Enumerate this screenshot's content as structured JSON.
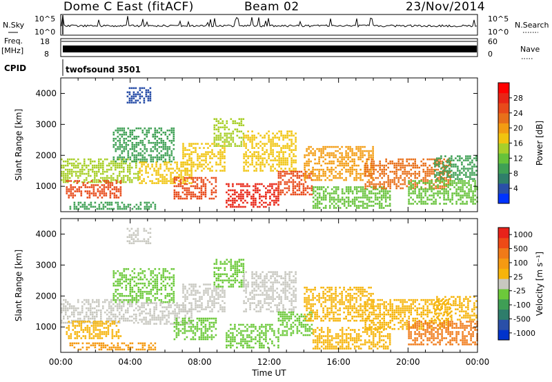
{
  "header": {
    "station": "Dome C East (fitACF)",
    "beam": "Beam 02",
    "date": "23/Nov/2014"
  },
  "status_panel": {
    "nsky_label": "N.Sky",
    "nsearch_label": "N.Search",
    "nsky_ticks": [
      "10^5",
      "10^0"
    ],
    "freq_label": "Freq.",
    "freq_unit": "[MHz]",
    "freq_ticks": [
      "18",
      "8"
    ],
    "nave_label": "Nave",
    "nave_ticks": [
      "60",
      "0"
    ],
    "cpid_label": "CPID",
    "cpid_value": "twofsound 3501"
  },
  "chart_data": [
    {
      "type": "heatmap",
      "parameter": "Power",
      "ylabel": "Slant Range [km]",
      "ylim": [
        180,
        4500
      ],
      "yticks": [
        "1000",
        "2000",
        "3000",
        "4000"
      ],
      "xlim": [
        "00:00",
        "24:00"
      ],
      "colorbar": {
        "label": "Power [dB]",
        "ticks": [
          "4",
          "8",
          "12",
          "16",
          "20",
          "24",
          "28"
        ],
        "colors": [
          "#0033ff",
          "#2a4fa8",
          "#2f7f6a",
          "#3fa055",
          "#66c23a",
          "#a8cf2a",
          "#f1c40f",
          "#f39c12",
          "#e8701a",
          "#e84a1a",
          "#e82516",
          "#ff0000"
        ],
        "min": 0,
        "max": 32
      },
      "echo_regions": [
        {
          "t": [
            0.0,
            4.5
          ],
          "r": [
            1150,
            1900
          ],
          "value": 14
        },
        {
          "t": [
            0.3,
            3.5
          ],
          "r": [
            600,
            1200
          ],
          "value": 26
        },
        {
          "t": [
            0.5,
            5.5
          ],
          "r": [
            250,
            500
          ],
          "value": 10
        },
        {
          "t": [
            3.0,
            6.5
          ],
          "r": [
            1800,
            2900
          ],
          "value": 9
        },
        {
          "t": [
            3.8,
            5.2
          ],
          "r": [
            3700,
            4200
          ],
          "value": 5
        },
        {
          "t": [
            4.5,
            7.5
          ],
          "r": [
            1100,
            1800
          ],
          "value": 18
        },
        {
          "t": [
            6.5,
            9.0
          ],
          "r": [
            600,
            1300
          ],
          "value": 25
        },
        {
          "t": [
            7.0,
            9.5
          ],
          "r": [
            1500,
            2400
          ],
          "value": 17
        },
        {
          "t": [
            8.8,
            10.5
          ],
          "r": [
            2300,
            3200
          ],
          "value": 14
        },
        {
          "t": [
            9.5,
            12.5
          ],
          "r": [
            350,
            1100
          ],
          "value": 27
        },
        {
          "t": [
            10.5,
            13.5
          ],
          "r": [
            1500,
            2800
          ],
          "value": 16
        },
        {
          "t": [
            12.5,
            14.5
          ],
          "r": [
            700,
            1500
          ],
          "value": 24
        },
        {
          "t": [
            14.0,
            18.0
          ],
          "r": [
            1200,
            2300
          ],
          "value": 19
        },
        {
          "t": [
            14.5,
            19.0
          ],
          "r": [
            300,
            1000
          ],
          "value": 12
        },
        {
          "t": [
            17.5,
            22.5
          ],
          "r": [
            900,
            1900
          ],
          "value": 23
        },
        {
          "t": [
            20.0,
            24.0
          ],
          "r": [
            400,
            1200
          ],
          "value": 13
        },
        {
          "t": [
            21.5,
            24.0
          ],
          "r": [
            1200,
            2000
          ],
          "value": 9
        }
      ]
    },
    {
      "type": "heatmap",
      "parameter": "Velocity",
      "ylabel": "Slant Range [km]",
      "ylim": [
        180,
        4500
      ],
      "yticks": [
        "1000",
        "2000",
        "3000",
        "4000"
      ],
      "xlabel": "Time UT",
      "xticks": [
        "00:00",
        "04:00",
        "08:00",
        "12:00",
        "16:00",
        "20:00",
        "00:00"
      ],
      "xlim": [
        "00:00",
        "24:00"
      ],
      "colorbar": {
        "label": "Velocity [m s⁻¹]",
        "ticks": [
          "1000",
          "500",
          "100",
          "25",
          "-25",
          "-100",
          "-500",
          "-1000"
        ],
        "colors": [
          "#0033cc",
          "#2a4fa8",
          "#2e7d6b",
          "#3f9e55",
          "#6cc93a",
          "#c8c8c0",
          "#f6b40a",
          "#f59a12",
          "#f07a18",
          "#ee4a16",
          "#e8221a"
        ],
        "min": -1200,
        "max": 1200
      },
      "echo_regions": [
        {
          "t": [
            0.0,
            4.5
          ],
          "r": [
            1150,
            1900
          ],
          "value": 60
        },
        {
          "t": [
            0.3,
            3.5
          ],
          "r": [
            600,
            1200
          ],
          "value": 150
        },
        {
          "t": [
            0.5,
            5.5
          ],
          "r": [
            250,
            500
          ],
          "value": 350
        },
        {
          "t": [
            3.0,
            6.5
          ],
          "r": [
            1800,
            2900
          ],
          "value": -150
        },
        {
          "t": [
            3.8,
            5.2
          ],
          "r": [
            3700,
            4200
          ],
          "value": -40
        },
        {
          "t": [
            4.5,
            7.5
          ],
          "r": [
            1100,
            1800
          ],
          "value": 5
        },
        {
          "t": [
            6.5,
            9.0
          ],
          "r": [
            600,
            1300
          ],
          "value": -160
        },
        {
          "t": [
            7.0,
            9.5
          ],
          "r": [
            1500,
            2400
          ],
          "value": -20
        },
        {
          "t": [
            8.8,
            10.5
          ],
          "r": [
            2300,
            3200
          ],
          "value": -250
        },
        {
          "t": [
            9.5,
            12.5
          ],
          "r": [
            350,
            1100
          ],
          "value": -180
        },
        {
          "t": [
            10.5,
            13.5
          ],
          "r": [
            1500,
            2800
          ],
          "value": 10
        },
        {
          "t": [
            12.5,
            14.5
          ],
          "r": [
            700,
            1500
          ],
          "value": -220
        },
        {
          "t": [
            14.0,
            18.0
          ],
          "r": [
            1200,
            2300
          ],
          "value": 200
        },
        {
          "t": [
            14.5,
            19.0
          ],
          "r": [
            300,
            1000
          ],
          "value": 280
        },
        {
          "t": [
            17.5,
            22.5
          ],
          "r": [
            900,
            1900
          ],
          "value": 300
        },
        {
          "t": [
            20.0,
            24.0
          ],
          "r": [
            400,
            1200
          ],
          "value": 700
        },
        {
          "t": [
            21.5,
            24.0
          ],
          "r": [
            1200,
            2000
          ],
          "value": 120
        }
      ]
    }
  ]
}
